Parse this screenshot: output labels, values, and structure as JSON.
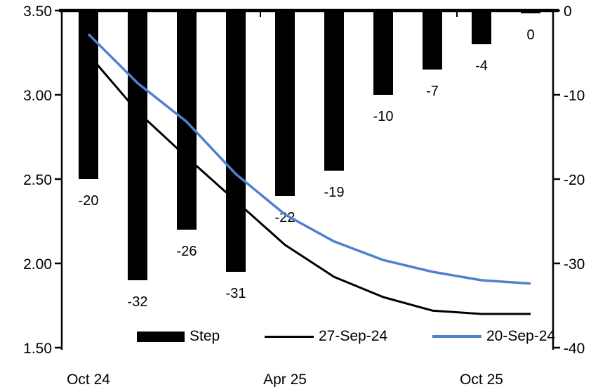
{
  "chart_data": {
    "type": "bar-line-combo",
    "n_points": 10,
    "background": "#ffffff",
    "x_tick_labels": [
      {
        "index": 0,
        "label": "Oct 24"
      },
      {
        "index": 4,
        "label": "Apr 25"
      },
      {
        "index": 8,
        "label": "Oct 25"
      }
    ],
    "left_axis": {
      "min": 1.5,
      "max": 3.5,
      "tick_labels": [
        "3.50",
        "3.00",
        "2.50",
        "2.00",
        "1.50"
      ]
    },
    "right_axis": {
      "min": -40,
      "max": 0,
      "tick_labels": [
        "0",
        "-10",
        "-20",
        "-30",
        "-40"
      ]
    },
    "bar_series": {
      "name": "Step",
      "axis": "right",
      "color": "#000000",
      "values": [
        -20,
        -32,
        -26,
        -31,
        -22,
        -19,
        -10,
        -7,
        -4,
        0
      ],
      "data_labels": [
        "-20",
        "-32",
        "-26",
        "-31",
        "-22",
        "-19",
        "-10",
        "-7",
        "-4",
        "0"
      ]
    },
    "line_series": [
      {
        "name": "27-Sep-24",
        "axis": "left",
        "color": "#000000",
        "values": [
          3.24,
          2.9,
          2.63,
          2.37,
          2.11,
          1.92,
          1.8,
          1.72,
          1.7,
          1.7
        ]
      },
      {
        "name": "20-Sep-24",
        "axis": "left",
        "color": "#4f81cf",
        "values": [
          3.36,
          3.07,
          2.84,
          2.53,
          2.29,
          2.13,
          2.02,
          1.95,
          1.9,
          1.88
        ]
      }
    ],
    "legend": {
      "position": "bottom-inside",
      "entries": [
        {
          "label": "Step",
          "type": "bar",
          "color": "#000000"
        },
        {
          "label": "27-Sep-24",
          "type": "line",
          "color": "#000000"
        },
        {
          "label": "20-Sep-24",
          "type": "line",
          "color": "#4f81cf"
        }
      ]
    },
    "axis_color": "#000000",
    "label_color": "#000000"
  }
}
